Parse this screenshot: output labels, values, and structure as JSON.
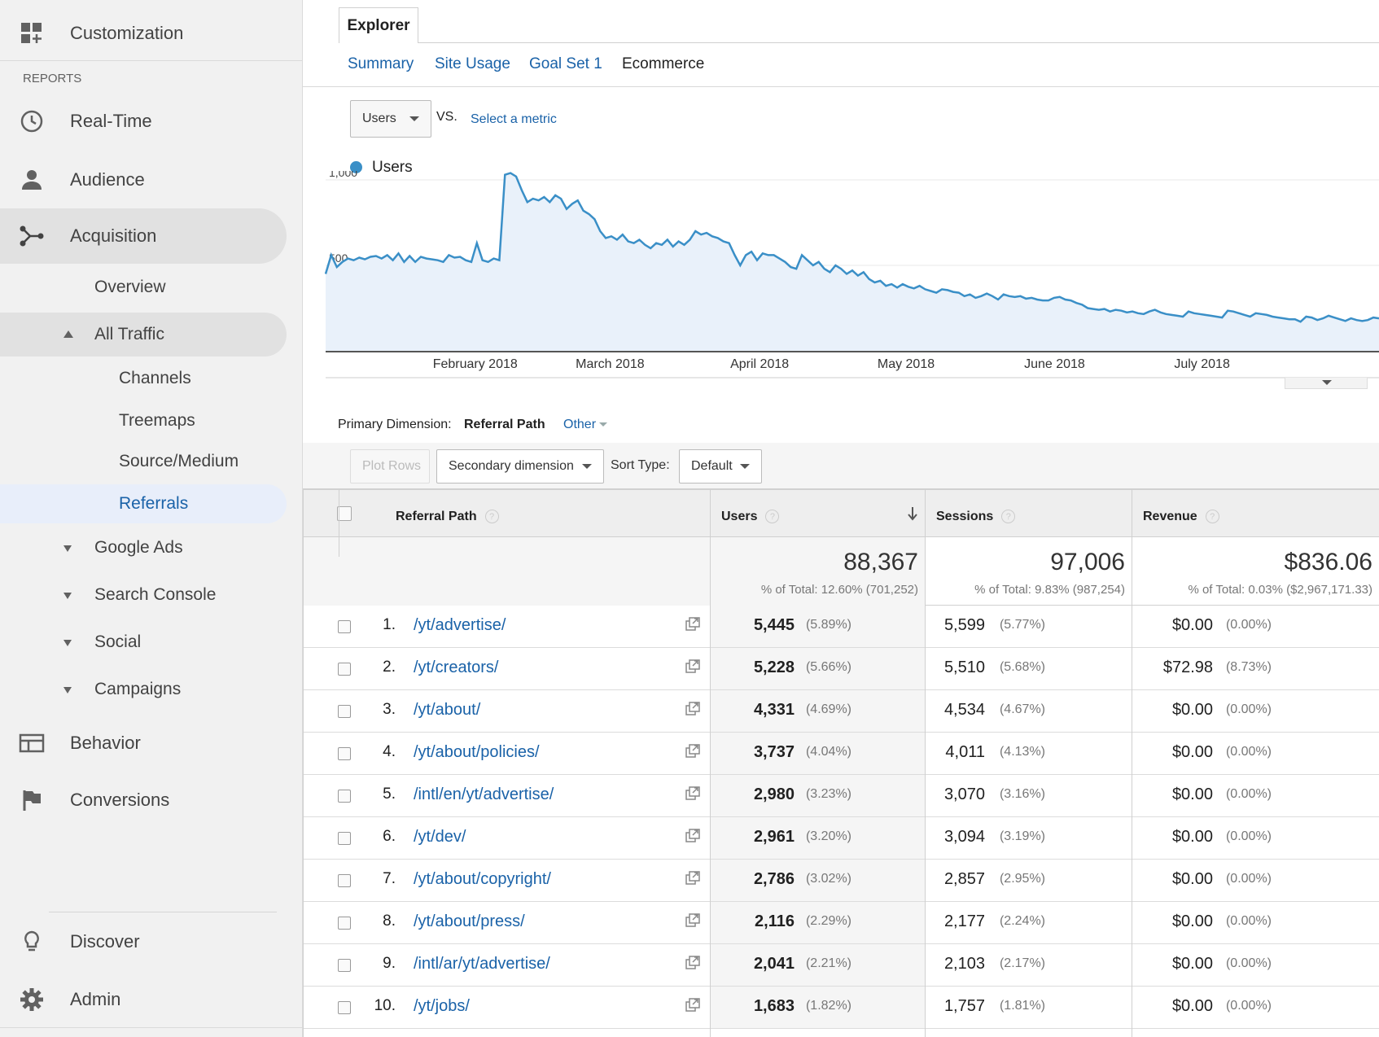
{
  "sidebar": {
    "customization": "Customization",
    "reports_header": "REPORTS",
    "realtime": "Real-Time",
    "audience": "Audience",
    "acquisition": "Acquisition",
    "overview": "Overview",
    "all_traffic": "All Traffic",
    "channels": "Channels",
    "treemaps": "Treemaps",
    "source_medium": "Source/Medium",
    "referrals": "Referrals",
    "google_ads": "Google Ads",
    "search_console": "Search Console",
    "social": "Social",
    "campaigns": "Campaigns",
    "behavior": "Behavior",
    "conversions": "Conversions",
    "discover": "Discover",
    "admin": "Admin"
  },
  "tabs": {
    "explorer": "Explorer",
    "summary": "Summary",
    "site_usage": "Site Usage",
    "goal_set": "Goal Set 1",
    "ecommerce": "Ecommerce"
  },
  "metric": {
    "selected": "Users",
    "vs": "VS.",
    "select_metric": "Select a metric"
  },
  "chart_data": {
    "type": "area",
    "legend": "Users",
    "color": "#3a8fc7",
    "y_ticks": [
      "1,000",
      "500"
    ],
    "ylim": [
      0,
      1100
    ],
    "x_labels": [
      "February 2018",
      "March 2018",
      "April 2018",
      "May 2018",
      "June 2018",
      "July 2018"
    ],
    "values": [
      450,
      560,
      490,
      520,
      540,
      530,
      545,
      535,
      550,
      555,
      540,
      560,
      530,
      570,
      520,
      555,
      520,
      550,
      540,
      535,
      530,
      520,
      560,
      545,
      550,
      530,
      520,
      630,
      530,
      520,
      540,
      530,
      1030,
      1040,
      1020,
      940,
      870,
      890,
      880,
      900,
      870,
      910,
      890,
      830,
      860,
      880,
      820,
      800,
      770,
      700,
      660,
      670,
      650,
      680,
      640,
      630,
      650,
      620,
      600,
      630,
      620,
      650,
      610,
      640,
      620,
      650,
      700,
      680,
      690,
      670,
      660,
      640,
      630,
      560,
      500,
      560,
      580,
      530,
      570,
      560,
      560,
      540,
      520,
      490,
      480,
      560,
      530,
      500,
      520,
      480,
      460,
      500,
      480,
      450,
      470,
      440,
      460,
      420,
      400,
      410,
      380,
      390,
      370,
      390,
      375,
      365,
      380,
      360,
      350,
      340,
      360,
      355,
      345,
      340,
      320,
      330,
      310,
      320,
      335,
      320,
      300,
      330,
      320,
      315,
      320,
      305,
      310,
      300,
      295,
      295,
      310,
      315,
      300,
      295,
      280,
      270,
      250,
      245,
      240,
      245,
      230,
      240,
      235,
      225,
      230,
      220,
      215,
      230,
      240,
      225,
      215,
      210,
      205,
      200,
      230,
      220,
      215,
      210,
      205,
      200,
      195,
      235,
      230,
      220,
      210,
      200,
      220,
      215,
      210,
      200,
      195,
      190,
      185,
      185,
      170,
      200,
      195,
      180,
      190,
      205,
      195,
      185,
      175,
      190,
      180,
      175,
      180,
      195,
      190
    ]
  },
  "dimension": {
    "label": "Primary Dimension:",
    "current": "Referral Path",
    "other": "Other"
  },
  "controls": {
    "plot_rows": "Plot Rows",
    "secondary": "Secondary dimension",
    "sort_label": "Sort Type:",
    "sort_value": "Default"
  },
  "table": {
    "headers": {
      "path": "Referral Path",
      "users": "Users",
      "sessions": "Sessions",
      "revenue": "Revenue"
    },
    "totals": {
      "users": "88,367",
      "users_sub": "% of Total: 12.60% (701,252)",
      "sessions": "97,006",
      "sessions_sub": "% of Total: 9.83% (987,254)",
      "revenue": "$836.06",
      "revenue_sub": "% of Total: 0.03% ($2,967,171.33)"
    },
    "rows": [
      {
        "n": "1.",
        "path": "/yt/advertise/",
        "users": "5,445",
        "users_pct": "(5.89%)",
        "sessions": "5,599",
        "sessions_pct": "(5.77%)",
        "revenue": "$0.00",
        "revenue_pct": "(0.00%)"
      },
      {
        "n": "2.",
        "path": "/yt/creators/",
        "users": "5,228",
        "users_pct": "(5.66%)",
        "sessions": "5,510",
        "sessions_pct": "(5.68%)",
        "revenue": "$72.98",
        "revenue_pct": "(8.73%)"
      },
      {
        "n": "3.",
        "path": "/yt/about/",
        "users": "4,331",
        "users_pct": "(4.69%)",
        "sessions": "4,534",
        "sessions_pct": "(4.67%)",
        "revenue": "$0.00",
        "revenue_pct": "(0.00%)"
      },
      {
        "n": "4.",
        "path": "/yt/about/policies/",
        "users": "3,737",
        "users_pct": "(4.04%)",
        "sessions": "4,011",
        "sessions_pct": "(4.13%)",
        "revenue": "$0.00",
        "revenue_pct": "(0.00%)"
      },
      {
        "n": "5.",
        "path": "/intl/en/yt/advertise/",
        "users": "2,980",
        "users_pct": "(3.23%)",
        "sessions": "3,070",
        "sessions_pct": "(3.16%)",
        "revenue": "$0.00",
        "revenue_pct": "(0.00%)"
      },
      {
        "n": "6.",
        "path": "/yt/dev/",
        "users": "2,961",
        "users_pct": "(3.20%)",
        "sessions": "3,094",
        "sessions_pct": "(3.19%)",
        "revenue": "$0.00",
        "revenue_pct": "(0.00%)"
      },
      {
        "n": "7.",
        "path": "/yt/about/copyright/",
        "users": "2,786",
        "users_pct": "(3.02%)",
        "sessions": "2,857",
        "sessions_pct": "(2.95%)",
        "revenue": "$0.00",
        "revenue_pct": "(0.00%)"
      },
      {
        "n": "8.",
        "path": "/yt/about/press/",
        "users": "2,116",
        "users_pct": "(2.29%)",
        "sessions": "2,177",
        "sessions_pct": "(2.24%)",
        "revenue": "$0.00",
        "revenue_pct": "(0.00%)"
      },
      {
        "n": "9.",
        "path": "/intl/ar/yt/advertise/",
        "users": "2,041",
        "users_pct": "(2.21%)",
        "sessions": "2,103",
        "sessions_pct": "(2.17%)",
        "revenue": "$0.00",
        "revenue_pct": "(0.00%)"
      },
      {
        "n": "10.",
        "path": "/yt/jobs/",
        "users": "1,683",
        "users_pct": "(1.82%)",
        "sessions": "1,757",
        "sessions_pct": "(1.81%)",
        "revenue": "$0.00",
        "revenue_pct": "(0.00%)"
      }
    ]
  }
}
